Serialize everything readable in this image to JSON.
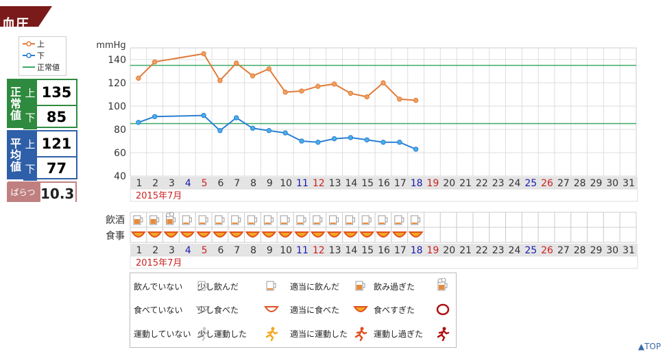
{
  "section_title": "血圧",
  "legend": {
    "upper": "上",
    "lower": "下",
    "normal": "正常値"
  },
  "normal_box": {
    "title": [
      "正",
      "常",
      "値"
    ],
    "upper_label": "上",
    "upper_value": "135",
    "lower_label": "下",
    "lower_value": "85"
  },
  "average_box": {
    "title": [
      "平",
      "均",
      "値"
    ],
    "upper_label": "上",
    "upper_value": "121",
    "lower_label": "下",
    "lower_value": "77"
  },
  "variance_box": {
    "label": "ばらつ",
    "value": "10.3"
  },
  "colors": {
    "upper": "#e07b39",
    "lower": "#2a7fd4",
    "normal": "#3aaa64",
    "sat": "#1a1ab0",
    "sun": "#cc2020",
    "title_bg": "#7a1a1a",
    "normal_box": "#2e8a3e",
    "average_box": "#2f5fa8"
  },
  "chart_data": {
    "type": "line",
    "ylabel": "mmHg",
    "ylim": [
      40,
      150
    ],
    "yticks": [
      40,
      60,
      80,
      100,
      120,
      140
    ],
    "x": [
      1,
      2,
      3,
      4,
      5,
      6,
      7,
      8,
      9,
      10,
      11,
      12,
      13,
      14,
      15,
      16,
      17,
      18,
      19,
      20,
      21,
      22,
      23,
      24,
      25,
      26,
      27,
      28,
      29,
      30,
      31
    ],
    "saturdays": [
      4,
      11,
      18,
      25
    ],
    "sundays": [
      5,
      12,
      19,
      26
    ],
    "month_label": "2015年7月",
    "series": [
      {
        "name": "上",
        "x": [
          1,
          2,
          5,
          6,
          7,
          8,
          9,
          10,
          11,
          12,
          13,
          14,
          15,
          16,
          17,
          18
        ],
        "values": [
          124,
          138,
          145,
          122,
          137,
          126,
          132,
          112,
          113,
          117,
          119,
          111,
          108,
          120,
          106,
          105
        ]
      },
      {
        "name": "下",
        "x": [
          1,
          2,
          5,
          6,
          7,
          8,
          9,
          10,
          11,
          12,
          13,
          14,
          15,
          16,
          17,
          18
        ],
        "values": [
          86,
          91,
          92,
          79,
          90,
          81,
          79,
          77,
          70,
          69,
          72,
          73,
          71,
          69,
          69,
          63
        ]
      }
    ],
    "reference_lines": [
      {
        "name": "正常値",
        "value": 135
      },
      {
        "name": "正常値",
        "value": 85
      }
    ]
  },
  "lifestyle": {
    "drink_label": "飲酒",
    "meal_label": "食事",
    "month_label": "2015年7月",
    "drink": [
      2,
      2,
      3,
      1,
      1,
      1,
      1,
      1,
      1,
      1,
      1,
      1,
      1,
      1,
      1,
      1,
      1,
      1
    ],
    "meal": [
      2,
      2,
      2,
      2,
      2,
      2,
      2,
      2,
      2,
      2,
      2,
      2,
      2,
      2,
      2,
      2,
      2,
      2
    ]
  },
  "icon_legend": {
    "drink": [
      "飲んでいない",
      "少し飲んだ",
      "適当に飲んだ",
      "飲み過ぎた"
    ],
    "meal": [
      "食べていない",
      "少し食べた",
      "適当に食べた",
      "食べすぎた"
    ],
    "exercise": [
      "運動していない",
      "少し運動した",
      "適当に運動した",
      "運動し過ぎた"
    ],
    "icons": [
      "glass-empty-icon",
      "glass-little-icon",
      "glass-moderate-icon",
      "glass-too-much-icon",
      "bowl-empty-icon",
      "bowl-little-icon",
      "bowl-moderate-icon",
      "bowl-too-much-icon",
      "runner-none-icon",
      "runner-little-icon",
      "runner-moderate-icon",
      "runner-too-much-icon"
    ]
  },
  "top_link": "▲TOP"
}
